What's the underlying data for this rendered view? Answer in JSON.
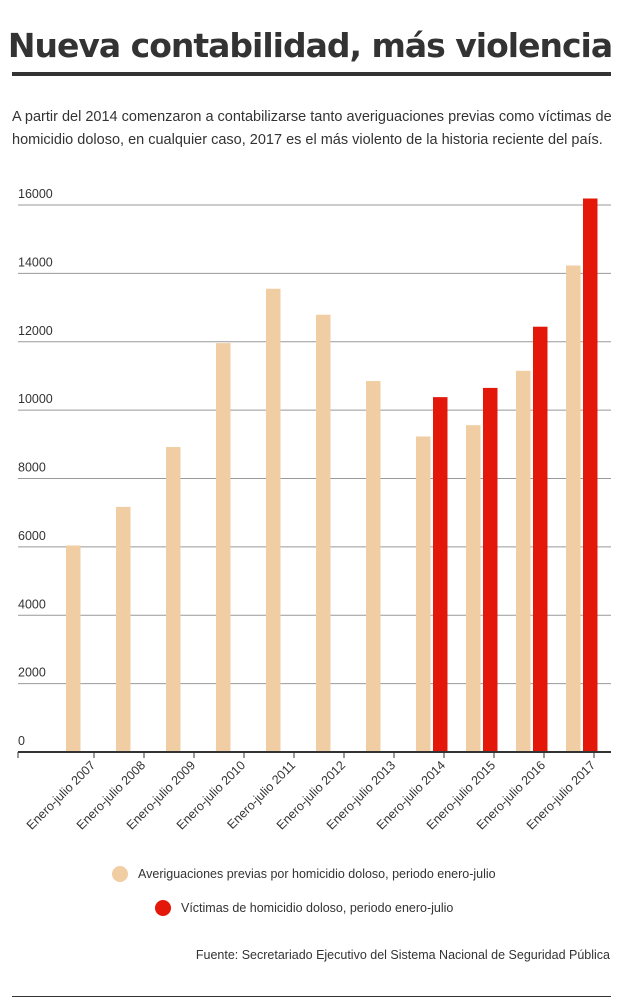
{
  "header": {
    "title": "Nueva contabilidad, más violencia",
    "subtitle": "A partir del 2014 comenzaron a contabilizarse tanto averiguaciones previas como víctimas de homicidio doloso, en cualquier caso, 2017 es el más violento de la historia reciente del país."
  },
  "chart_data": {
    "type": "bar",
    "categories": [
      "Enero-julio 2007",
      "Enero-julio 2008",
      "Enero-julio 2009",
      "Enero-julio 2010",
      "Enero-julio 2011",
      "Enero-julio 2012",
      "Enero-julio 2013",
      "Enero-julio 2014",
      "Enero-julio 2015",
      "Enero-julio 2016",
      "Enero-julio 2017"
    ],
    "series": [
      {
        "name": "Averiguaciones previas por homicidio doloso, periodo enero-julio",
        "color": "#f0cda3",
        "values": [
          6040,
          7170,
          8920,
          11960,
          13550,
          12790,
          10850,
          9230,
          9560,
          11150,
          14230
        ]
      },
      {
        "name": "Víctimas de homicidio doloso, periodo enero-julio",
        "color": "#e3170a",
        "values": [
          null,
          null,
          null,
          null,
          null,
          null,
          null,
          10380,
          10650,
          12440,
          16190
        ]
      }
    ],
    "ylim": [
      0,
      16000
    ],
    "yticks": [
      0,
      2000,
      4000,
      6000,
      8000,
      10000,
      12000,
      14000,
      16000
    ],
    "grid": true,
    "legend_position": "bottom"
  },
  "footer": {
    "source": "Fuente: Secretariado Ejecutivo del Sistema Nacional de Seguridad Pública"
  }
}
